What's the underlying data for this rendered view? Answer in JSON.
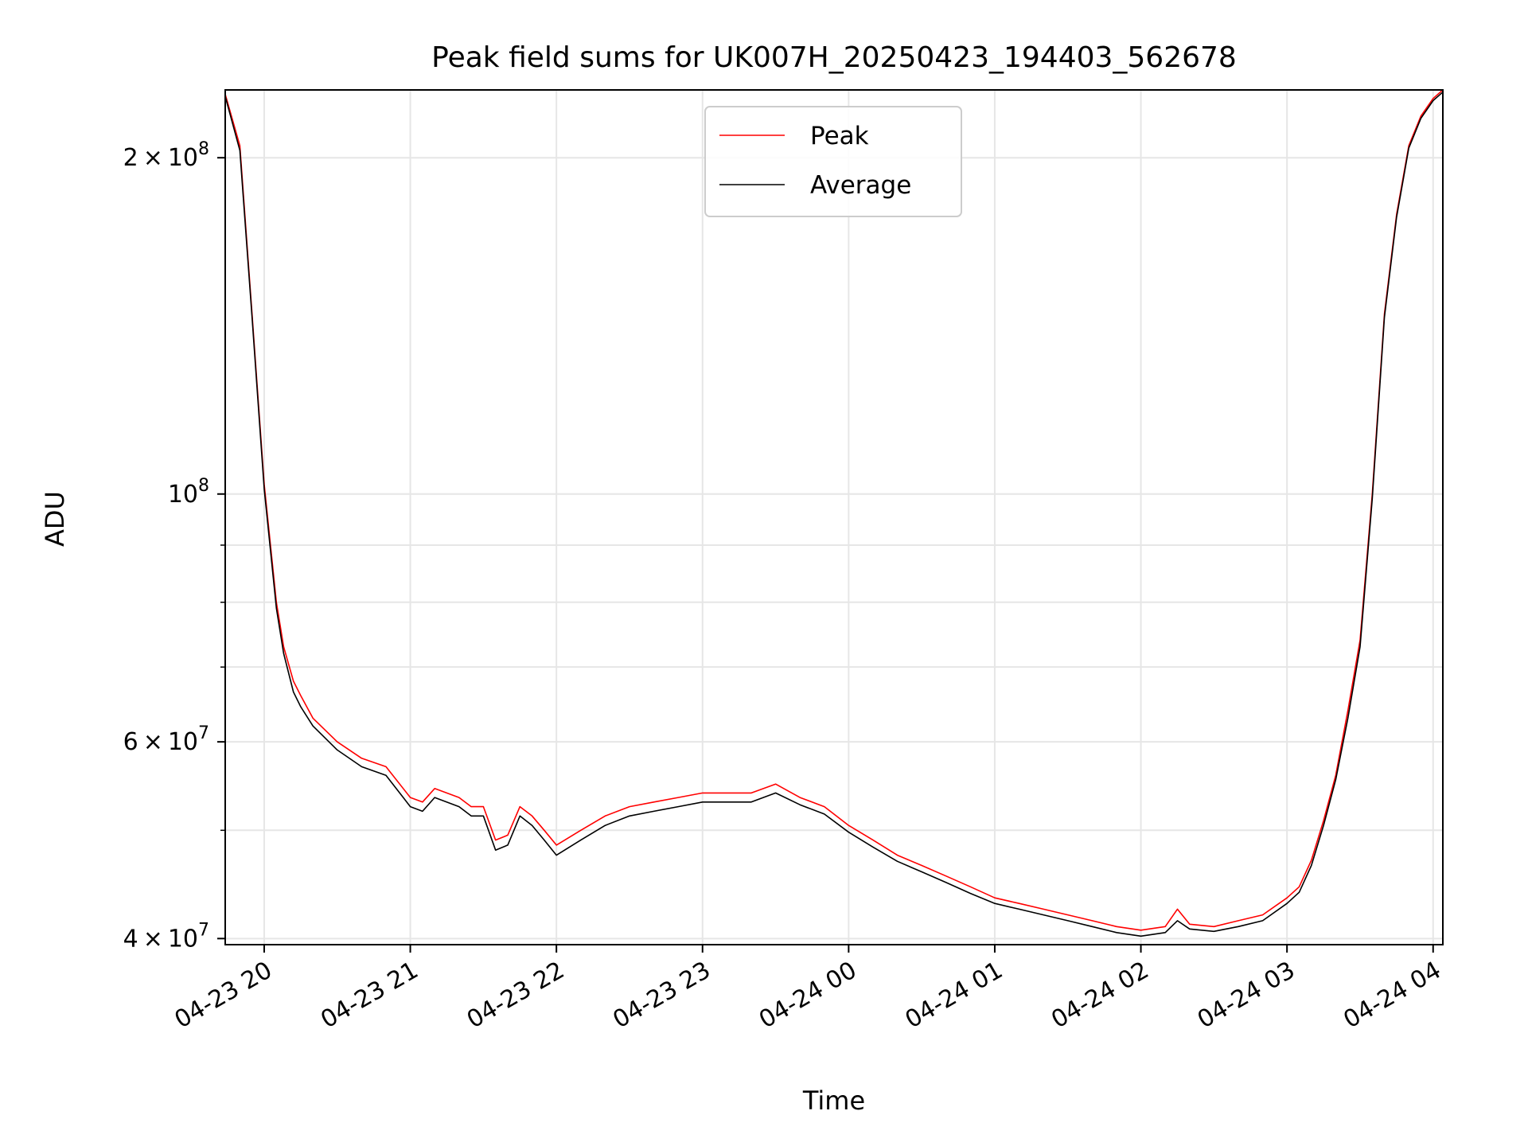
{
  "chart_data": {
    "type": "line",
    "title": "Peak field sums for UK007H_20250423_194403_562678",
    "xlabel": "Time",
    "ylabel": "ADU",
    "y_scale": "log",
    "ylim": [
      39500000,
      230000000
    ],
    "xlim": [
      "2025-04-23 19:44",
      "2025-04-24 04:04"
    ],
    "grid": true,
    "legend": "upper center",
    "x_tick_labels": [
      "04-23 20",
      "04-23 21",
      "04-23 22",
      "04-23 23",
      "04-24 00",
      "04-24 01",
      "04-24 02",
      "04-24 03",
      "04-24 04"
    ],
    "x_tick_values": [
      "2025-04-23 20:00",
      "2025-04-23 21:00",
      "2025-04-23 22:00",
      "2025-04-23 23:00",
      "2025-04-24 00:00",
      "2025-04-24 01:00",
      "2025-04-24 02:00",
      "2025-04-24 03:00",
      "2025-04-24 04:00"
    ],
    "y_major_ticks": [
      {
        "value": 40000000,
        "mantissa": "4",
        "exp": "7"
      },
      {
        "value": 60000000,
        "mantissa": "6",
        "exp": "7"
      },
      {
        "value": 100000000,
        "mantissa": "",
        "exp": "8"
      },
      {
        "value": 200000000,
        "mantissa": "2",
        "exp": "8"
      }
    ],
    "y_minor_ticks": [
      50000000,
      70000000,
      80000000,
      90000000
    ],
    "series": [
      {
        "name": "Peak",
        "color": "#ff0000",
        "x": [
          "2025-04-23 19:44",
          "2025-04-23 19:50",
          "2025-04-23 19:55",
          "2025-04-23 20:00",
          "2025-04-23 20:05",
          "2025-04-23 20:08",
          "2025-04-23 20:12",
          "2025-04-23 20:15",
          "2025-04-23 20:20",
          "2025-04-23 20:30",
          "2025-04-23 20:40",
          "2025-04-23 20:50",
          "2025-04-23 21:00",
          "2025-04-23 21:05",
          "2025-04-23 21:10",
          "2025-04-23 21:20",
          "2025-04-23 21:25",
          "2025-04-23 21:30",
          "2025-04-23 21:35",
          "2025-04-23 21:40",
          "2025-04-23 21:45",
          "2025-04-23 21:50",
          "2025-04-23 21:55",
          "2025-04-23 22:00",
          "2025-04-23 22:10",
          "2025-04-23 22:20",
          "2025-04-23 22:30",
          "2025-04-23 22:40",
          "2025-04-23 22:50",
          "2025-04-23 23:00",
          "2025-04-23 23:10",
          "2025-04-23 23:20",
          "2025-04-23 23:30",
          "2025-04-23 23:40",
          "2025-04-23 23:50",
          "2025-04-24 00:00",
          "2025-04-24 00:10",
          "2025-04-24 00:20",
          "2025-04-24 00:30",
          "2025-04-24 00:40",
          "2025-04-24 00:50",
          "2025-04-24 01:00",
          "2025-04-24 01:10",
          "2025-04-24 01:20",
          "2025-04-24 01:30",
          "2025-04-24 01:40",
          "2025-04-24 01:50",
          "2025-04-24 02:00",
          "2025-04-24 02:10",
          "2025-04-24 02:15",
          "2025-04-24 02:20",
          "2025-04-24 02:30",
          "2025-04-24 02:40",
          "2025-04-24 02:50",
          "2025-04-24 03:00",
          "2025-04-24 03:05",
          "2025-04-24 03:10",
          "2025-04-24 03:15",
          "2025-04-24 03:20",
          "2025-04-24 03:25",
          "2025-04-24 03:30",
          "2025-04-24 03:35",
          "2025-04-24 03:40",
          "2025-04-24 03:45",
          "2025-04-24 03:50",
          "2025-04-24 03:55",
          "2025-04-24 04:00",
          "2025-04-24 04:04"
        ],
        "y": [
          228000000,
          205000000,
          145000000,
          102000000,
          80000000,
          73000000,
          68000000,
          66000000,
          63000000,
          60000000,
          58000000,
          57000000,
          53500000,
          53000000,
          54500000,
          53500000,
          52500000,
          52500000,
          49000000,
          49500000,
          52500000,
          51500000,
          50000000,
          48500000,
          50000000,
          51500000,
          52500000,
          53000000,
          53500000,
          54000000,
          54000000,
          54000000,
          55000000,
          53500000,
          52500000,
          50500000,
          49000000,
          47500000,
          46500000,
          45500000,
          44500000,
          43500000,
          43000000,
          42500000,
          42000000,
          41500000,
          41000000,
          40700000,
          41000000,
          42500000,
          41200000,
          41000000,
          41500000,
          42000000,
          43500000,
          44500000,
          47000000,
          51000000,
          56000000,
          64000000,
          74000000,
          100000000,
          145000000,
          178000000,
          205000000,
          218000000,
          226000000,
          230000000
        ]
      },
      {
        "name": "Average",
        "color": "#000000",
        "x": [
          "2025-04-23 19:44",
          "2025-04-23 19:50",
          "2025-04-23 19:55",
          "2025-04-23 20:00",
          "2025-04-23 20:05",
          "2025-04-23 20:08",
          "2025-04-23 20:12",
          "2025-04-23 20:15",
          "2025-04-23 20:20",
          "2025-04-23 20:30",
          "2025-04-23 20:40",
          "2025-04-23 20:50",
          "2025-04-23 21:00",
          "2025-04-23 21:05",
          "2025-04-23 21:10",
          "2025-04-23 21:20",
          "2025-04-23 21:25",
          "2025-04-23 21:30",
          "2025-04-23 21:35",
          "2025-04-23 21:40",
          "2025-04-23 21:45",
          "2025-04-23 21:50",
          "2025-04-23 21:55",
          "2025-04-23 22:00",
          "2025-04-23 22:10",
          "2025-04-23 22:20",
          "2025-04-23 22:30",
          "2025-04-23 22:40",
          "2025-04-23 22:50",
          "2025-04-23 23:00",
          "2025-04-23 23:10",
          "2025-04-23 23:20",
          "2025-04-23 23:30",
          "2025-04-23 23:40",
          "2025-04-23 23:50",
          "2025-04-24 00:00",
          "2025-04-24 00:10",
          "2025-04-24 00:20",
          "2025-04-24 00:30",
          "2025-04-24 00:40",
          "2025-04-24 00:50",
          "2025-04-24 01:00",
          "2025-04-24 01:10",
          "2025-04-24 01:20",
          "2025-04-24 01:30",
          "2025-04-24 01:40",
          "2025-04-24 01:50",
          "2025-04-24 02:00",
          "2025-04-24 02:10",
          "2025-04-24 02:15",
          "2025-04-24 02:20",
          "2025-04-24 02:30",
          "2025-04-24 02:40",
          "2025-04-24 02:50",
          "2025-04-24 03:00",
          "2025-04-24 03:05",
          "2025-04-24 03:10",
          "2025-04-24 03:15",
          "2025-04-24 03:20",
          "2025-04-24 03:25",
          "2025-04-24 03:30",
          "2025-04-24 03:35",
          "2025-04-24 03:40",
          "2025-04-24 03:45",
          "2025-04-24 03:50",
          "2025-04-24 03:55",
          "2025-04-24 04:00",
          "2025-04-24 04:04"
        ],
        "y": [
          227000000,
          203000000,
          144000000,
          101000000,
          79000000,
          72000000,
          66500000,
          64500000,
          62000000,
          59000000,
          57000000,
          56000000,
          52500000,
          52000000,
          53500000,
          52500000,
          51500000,
          51500000,
          48000000,
          48500000,
          51500000,
          50500000,
          49000000,
          47500000,
          49000000,
          50500000,
          51500000,
          52000000,
          52500000,
          53000000,
          53000000,
          53000000,
          54000000,
          52700000,
          51700000,
          49800000,
          48300000,
          46900000,
          45900000,
          44900000,
          43900000,
          43000000,
          42500000,
          42000000,
          41500000,
          41000000,
          40500000,
          40200000,
          40500000,
          41500000,
          40800000,
          40600000,
          41000000,
          41500000,
          43000000,
          44000000,
          46500000,
          50500000,
          55500000,
          63000000,
          73000000,
          99000000,
          144000000,
          177000000,
          204000000,
          217000000,
          225000000,
          229000000
        ]
      }
    ]
  }
}
